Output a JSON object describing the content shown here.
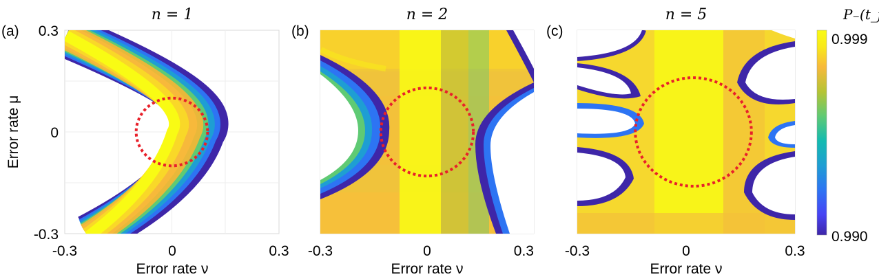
{
  "chart_data": [
    {
      "type": "heatmap",
      "panel_label": "(a)",
      "title": "n = 1",
      "n": 1,
      "xlabel": "Error rate ν",
      "ylabel": "Error rate μ",
      "xlim": [
        -0.3,
        0.3
      ],
      "ylim": [
        -0.3,
        0.3
      ],
      "x_ticks": [
        "-0.3",
        "0",
        "0.3"
      ],
      "y_ticks": [
        "0.3",
        "0",
        "-0.3"
      ],
      "region": "single crescent-shaped band of high fidelity, center near ν ≈ 0",
      "circle": {
        "center": [
          0.0,
          0.0
        ],
        "radius_nu": 0.1,
        "radius_mu": 0.1
      }
    },
    {
      "type": "heatmap",
      "panel_label": "(b)",
      "title": "n = 2",
      "n": 2,
      "xlabel": "Error rate ν",
      "ylabel": "",
      "xlim": [
        -0.3,
        0.3
      ],
      "ylim": [
        -0.3,
        0.3
      ],
      "x_ticks": [
        "-0.3",
        "0",
        "0.3"
      ],
      "y_ticks": [],
      "region": "wide band of high fidelity with white regions at left center and right",
      "circle": {
        "center": [
          0.0,
          0.0
        ],
        "radius_nu": 0.13,
        "radius_mu": 0.13
      }
    },
    {
      "type": "heatmap",
      "panel_label": "(c)",
      "title": "n = 5",
      "n": 5,
      "xlabel": "Error rate ν",
      "ylabel": "",
      "xlim": [
        -0.3,
        0.3
      ],
      "ylim": [
        -0.3,
        0.3
      ],
      "x_ticks": [
        "-0.3",
        "0",
        "0.3"
      ],
      "y_ticks": [],
      "region": "large central region of high fidelity with white lobes on the left and right",
      "circle": {
        "center": [
          0.02,
          0.0
        ],
        "radius_nu": 0.16,
        "radius_mu": 0.16
      }
    }
  ],
  "colorbar": {
    "label": "P₋(t_f)",
    "max_label": "0.999",
    "min_label": "0.990",
    "range": [
      0.99,
      0.999
    ],
    "colors": [
      "#3e26a8",
      "#4743f4",
      "#2d74f3",
      "#1e9ed3",
      "#13bbb0",
      "#5fca74",
      "#b5c434",
      "#f7b93b",
      "#f9e91a",
      "#f9fb14"
    ]
  }
}
